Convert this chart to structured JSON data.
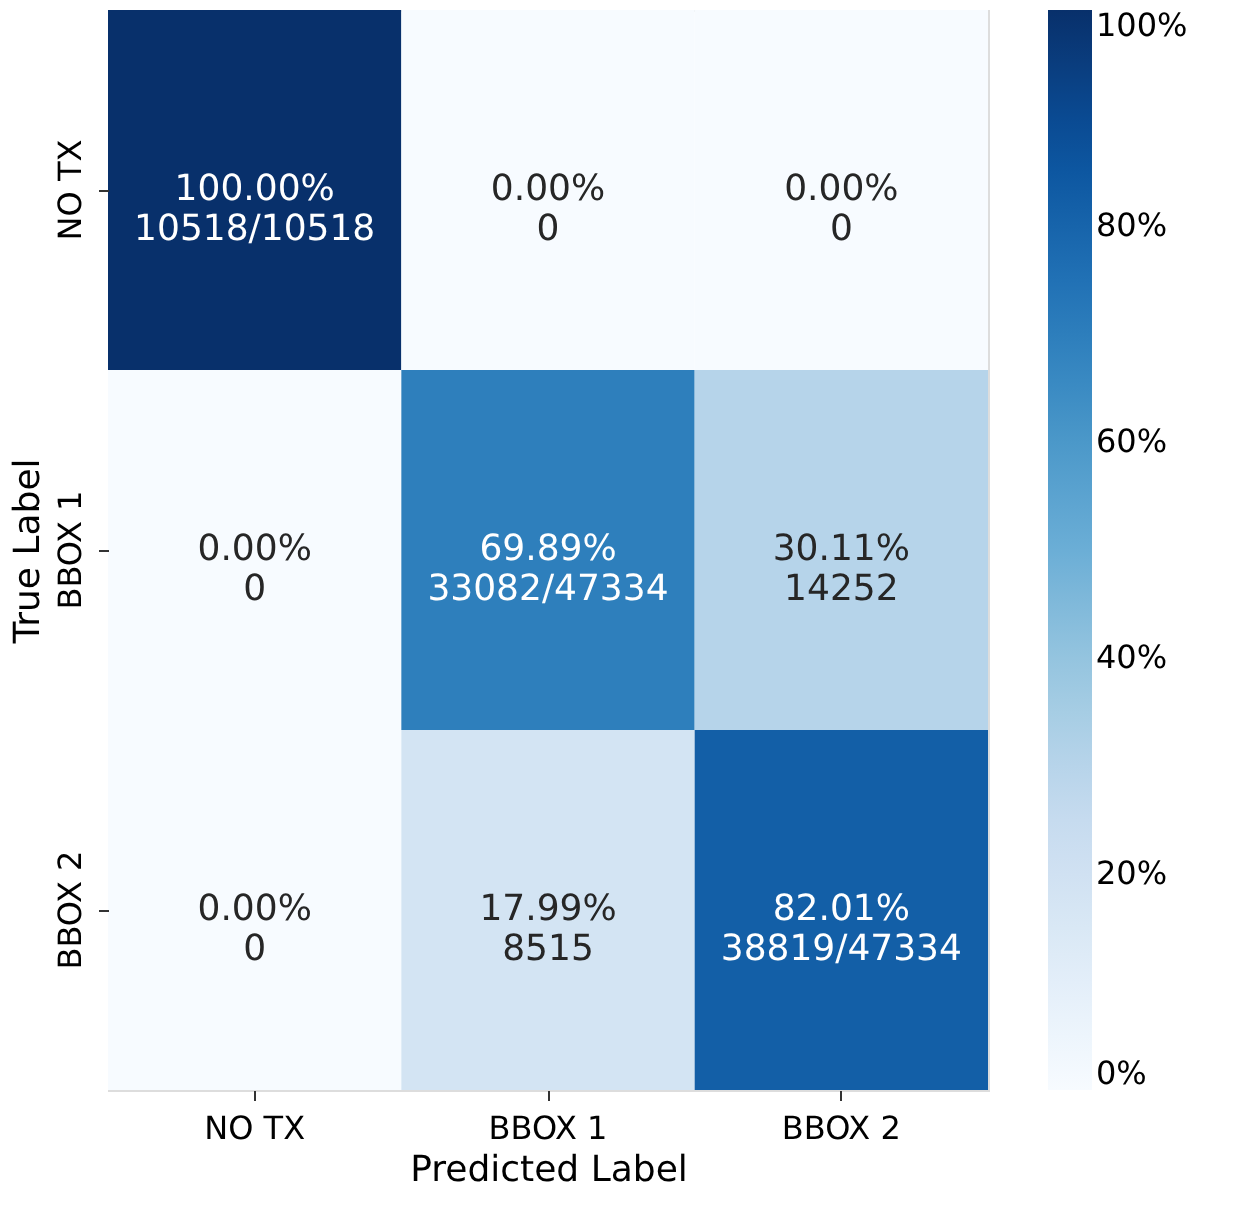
{
  "chart_data": {
    "type": "heatmap",
    "xlabel": "Predicted Label",
    "ylabel": "True Label",
    "categories": [
      "NO TX",
      "BBOX 1",
      "BBOX 2"
    ],
    "y_categories": [
      "NO TX",
      "BBOX 1",
      "BBOX 2"
    ],
    "cells": [
      [
        100.0,
        0.0,
        0.0
      ],
      [
        0.0,
        69.89,
        30.11
      ],
      [
        0.0,
        17.99,
        82.01
      ]
    ],
    "cell_labels": [
      [
        "100.00%\n10518/10518",
        "0.00%\n0",
        "0.00%\n0"
      ],
      [
        "0.00%\n0",
        "69.89%\n33082/47334",
        "30.11%\n14252"
      ],
      [
        "0.00%\n0",
        "17.99%\n8515",
        "82.01%\n38819/47334"
      ]
    ],
    "clim": [
      0,
      100
    ],
    "cticks": [
      {
        "value": 0,
        "label": "0%"
      },
      {
        "value": 20,
        "label": "20%"
      },
      {
        "value": 40,
        "label": "40%"
      },
      {
        "value": 60,
        "label": "60%"
      },
      {
        "value": 80,
        "label": "80%"
      },
      {
        "value": 100,
        "label": "100%"
      }
    ]
  }
}
